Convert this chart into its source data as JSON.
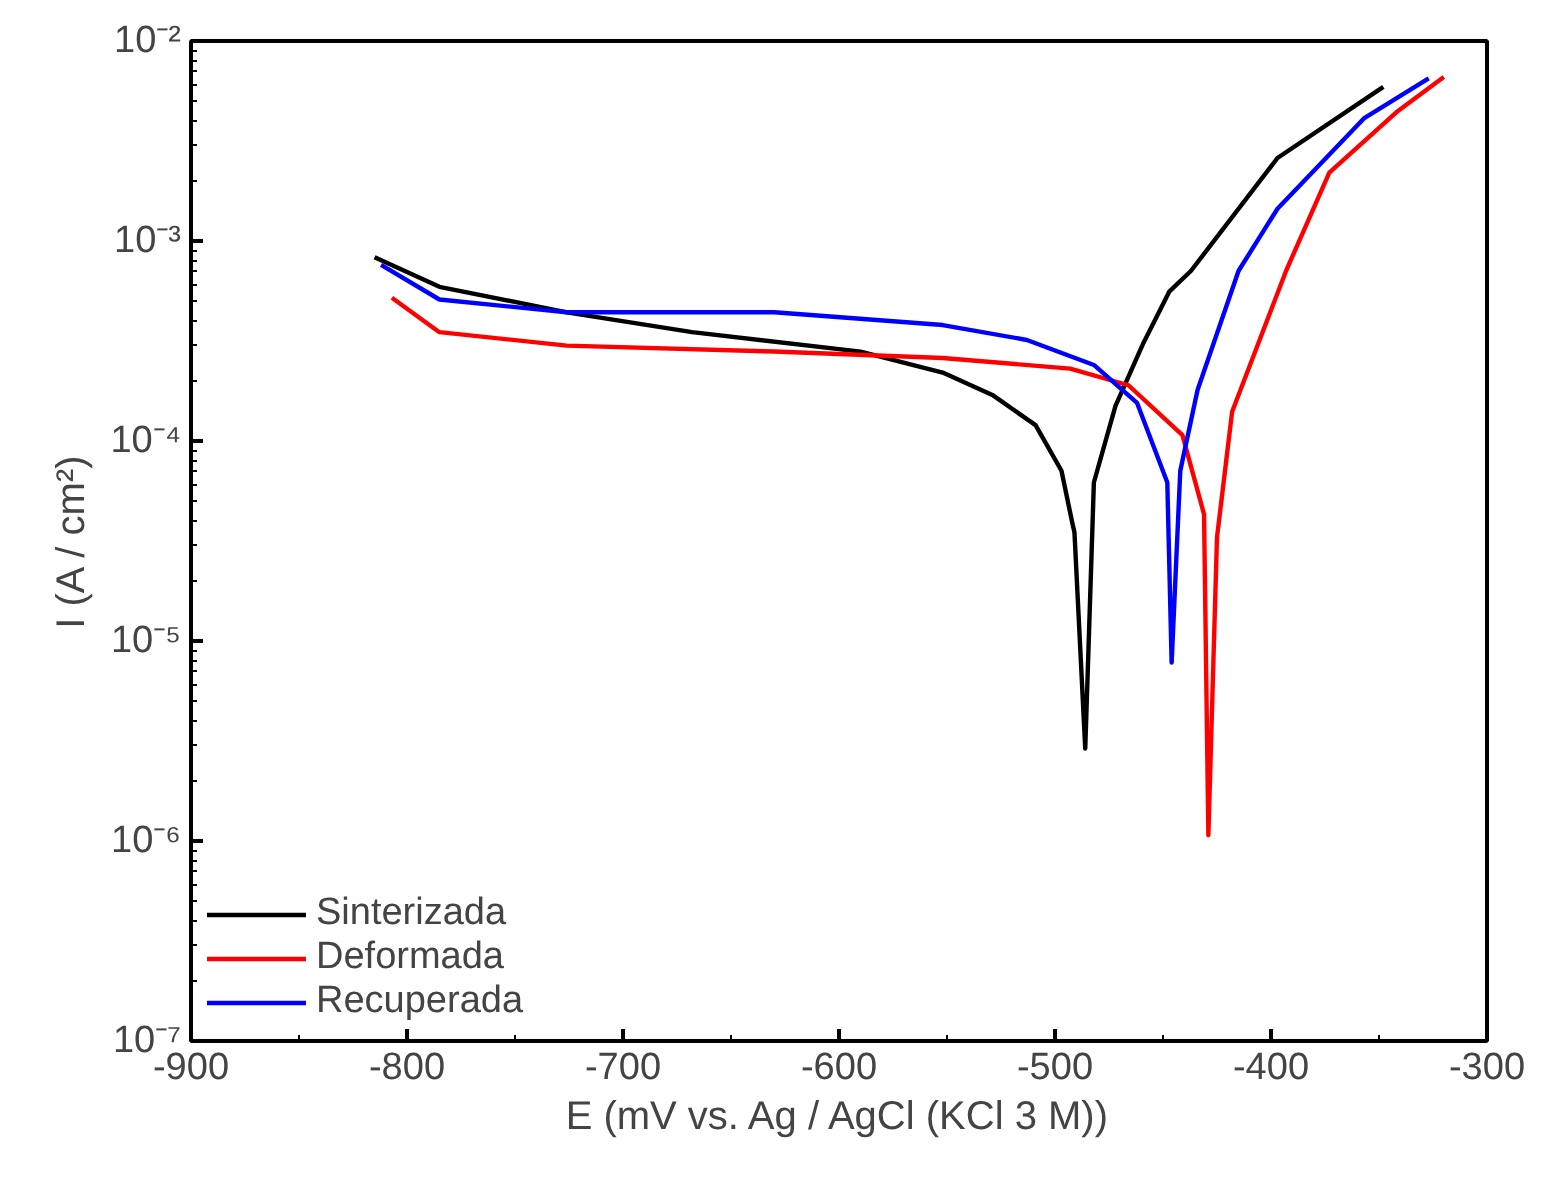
{
  "chart_data": {
    "type": "line",
    "xlabel": "E (mV vs. Ag / AgCl (KCl 3 M))",
    "ylabel": "I (A / cm²)",
    "log": "y",
    "grid": false,
    "legend": "bottom left",
    "line_style": "solid",
    "marker": "none",
    "xlim": [
      -900,
      -300
    ],
    "xticks": [
      -900,
      -800,
      -700,
      -600,
      -500,
      -400,
      -300
    ],
    "ylim": [
      1e-07,
      0.01
    ],
    "yticks": [
      {
        "value": 1e-07,
        "label": "10⁻⁷"
      },
      {
        "value": 1e-06,
        "label": "10⁻⁶"
      },
      {
        "value": 1e-05,
        "label": "10⁻⁵"
      },
      {
        "value": 0.0001,
        "label": "10⁻⁴"
      },
      {
        "value": 0.001,
        "label": "10⁻³"
      },
      {
        "value": 0.01,
        "label": "10⁻²"
      }
    ],
    "series": [
      {
        "name": "Sinterizada",
        "color": "#000000",
        "x": [
          -815,
          -785,
          -726,
          -668,
          -590,
          -552,
          -529,
          -509,
          -497,
          -492,
          -491,
          -486,
          -482,
          -472,
          -459,
          -447,
          -437,
          -397,
          -348
        ],
        "values": [
          0.00083,
          0.00059,
          0.00044,
          0.00035,
          0.00028,
          0.00022,
          0.00017,
          0.00012,
          7.1e-05,
          3.9e-05,
          3.5e-05,
          2.9e-06,
          6.2e-05,
          0.00015,
          0.00031,
          0.00056,
          0.00071,
          0.0026,
          0.0059
        ]
      },
      {
        "name": "Deformada",
        "color": "#ff0000",
        "x": [
          -807,
          -785,
          -726,
          -630,
          -552,
          -493,
          -466,
          -441,
          -431,
          -429,
          -425,
          -418,
          -393,
          -373,
          -342,
          -320
        ],
        "values": [
          0.00052,
          0.00035,
          0.0003,
          0.00028,
          0.00026,
          0.00023,
          0.00019,
          0.000107,
          4.3e-05,
          1.07e-06,
          3.3e-05,
          0.00014,
          0.00071,
          0.0022,
          0.0044,
          0.0066
        ]
      },
      {
        "name": "Recuperada",
        "color": "#0000ff",
        "x": [
          -812,
          -785,
          -726,
          -630,
          -552,
          -513,
          -482,
          -462,
          -448,
          -446,
          -442,
          -434,
          -415,
          -397,
          -357,
          -327
        ],
        "values": [
          0.00076,
          0.00051,
          0.00044,
          0.00044,
          0.00038,
          0.00032,
          0.00024,
          0.000155,
          6.2e-05,
          7.8e-06,
          7.1e-05,
          0.00018,
          0.00071,
          0.00145,
          0.0041,
          0.0065
        ]
      }
    ]
  }
}
